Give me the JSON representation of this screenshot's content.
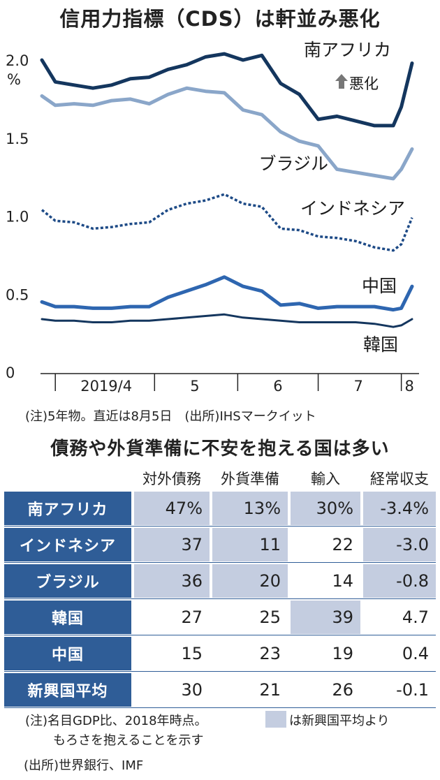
{
  "title": "信用力指標（CDS）は軒並み悪化",
  "chart_note": "(注)5年物。直近は8月5日　(出所)IHSマークイット",
  "worsening_label": "悪化",
  "chart_data": {
    "type": "line",
    "ylim": [
      0,
      2.0
    ],
    "y_ticks": [
      "0",
      "0.5",
      "1.0",
      "1.5",
      "2.0"
    ],
    "y_unit": "%",
    "x_ticks": [
      "2019/4",
      "5",
      "6",
      "7",
      "8"
    ],
    "x_range": [
      "2019-03-20",
      "2019-08-05"
    ],
    "grid": false,
    "series": [
      {
        "name": "南アフリカ",
        "color": "#14365e",
        "style": "solid",
        "x": [
          "2019-03-20",
          "2019-03-25",
          "2019-04-01",
          "2019-04-08",
          "2019-04-15",
          "2019-04-22",
          "2019-04-29",
          "2019-05-06",
          "2019-05-13",
          "2019-05-20",
          "2019-05-27",
          "2019-06-03",
          "2019-06-10",
          "2019-06-17",
          "2019-06-24",
          "2019-07-01",
          "2019-07-08",
          "2019-07-15",
          "2019-07-22",
          "2019-07-29",
          "2019-08-01",
          "2019-08-05"
        ],
        "values": [
          2.0,
          1.86,
          1.84,
          1.82,
          1.84,
          1.88,
          1.89,
          1.94,
          1.97,
          2.02,
          2.04,
          2.0,
          2.03,
          1.85,
          1.78,
          1.62,
          1.64,
          1.61,
          1.58,
          1.58,
          1.7,
          1.98
        ]
      },
      {
        "name": "ブラジル",
        "color": "#8aa6c9",
        "style": "solid",
        "x": [
          "2019-03-20",
          "2019-03-25",
          "2019-04-01",
          "2019-04-08",
          "2019-04-15",
          "2019-04-22",
          "2019-04-29",
          "2019-05-06",
          "2019-05-13",
          "2019-05-20",
          "2019-05-27",
          "2019-06-03",
          "2019-06-10",
          "2019-06-17",
          "2019-06-24",
          "2019-07-01",
          "2019-07-08",
          "2019-07-15",
          "2019-07-22",
          "2019-07-29",
          "2019-08-01",
          "2019-08-05"
        ],
        "values": [
          1.77,
          1.71,
          1.72,
          1.71,
          1.74,
          1.75,
          1.72,
          1.78,
          1.82,
          1.8,
          1.79,
          1.68,
          1.65,
          1.54,
          1.48,
          1.45,
          1.3,
          1.28,
          1.26,
          1.24,
          1.3,
          1.43
        ]
      },
      {
        "name": "インドネシア",
        "color": "#1d4a86",
        "style": "dotted",
        "x": [
          "2019-03-20",
          "2019-03-25",
          "2019-04-01",
          "2019-04-08",
          "2019-04-15",
          "2019-04-22",
          "2019-04-29",
          "2019-05-06",
          "2019-05-13",
          "2019-05-20",
          "2019-05-27",
          "2019-06-03",
          "2019-06-10",
          "2019-06-17",
          "2019-06-24",
          "2019-07-01",
          "2019-07-08",
          "2019-07-15",
          "2019-07-22",
          "2019-07-29",
          "2019-08-01",
          "2019-08-05"
        ],
        "values": [
          1.04,
          0.97,
          0.96,
          0.92,
          0.93,
          0.95,
          0.96,
          1.04,
          1.08,
          1.1,
          1.14,
          1.08,
          1.06,
          0.92,
          0.91,
          0.87,
          0.86,
          0.84,
          0.8,
          0.78,
          0.82,
          0.99
        ]
      },
      {
        "name": "中国",
        "color": "#2e66b0",
        "style": "solid",
        "x": [
          "2019-03-20",
          "2019-03-25",
          "2019-04-01",
          "2019-04-08",
          "2019-04-15",
          "2019-04-22",
          "2019-04-29",
          "2019-05-06",
          "2019-05-13",
          "2019-05-20",
          "2019-05-27",
          "2019-06-03",
          "2019-06-10",
          "2019-06-17",
          "2019-06-24",
          "2019-07-01",
          "2019-07-08",
          "2019-07-15",
          "2019-07-22",
          "2019-07-29",
          "2019-08-01",
          "2019-08-05"
        ],
        "values": [
          0.45,
          0.42,
          0.42,
          0.41,
          0.41,
          0.42,
          0.42,
          0.48,
          0.52,
          0.56,
          0.61,
          0.55,
          0.52,
          0.43,
          0.44,
          0.41,
          0.42,
          0.42,
          0.42,
          0.4,
          0.41,
          0.55
        ]
      },
      {
        "name": "韓国",
        "color": "#14365e",
        "style": "solid",
        "x": [
          "2019-03-20",
          "2019-03-25",
          "2019-04-01",
          "2019-04-08",
          "2019-04-15",
          "2019-04-22",
          "2019-04-29",
          "2019-05-06",
          "2019-05-13",
          "2019-05-20",
          "2019-05-27",
          "2019-06-03",
          "2019-06-10",
          "2019-06-17",
          "2019-06-24",
          "2019-07-01",
          "2019-07-08",
          "2019-07-15",
          "2019-07-22",
          "2019-07-29",
          "2019-08-01",
          "2019-08-05"
        ],
        "values": [
          0.34,
          0.33,
          0.33,
          0.32,
          0.32,
          0.33,
          0.33,
          0.34,
          0.35,
          0.36,
          0.37,
          0.35,
          0.34,
          0.33,
          0.32,
          0.32,
          0.32,
          0.32,
          0.31,
          0.29,
          0.3,
          0.34
        ]
      }
    ]
  },
  "table": {
    "title": "債務や外貨準備に不安を抱える国は多い",
    "columns": [
      "対外債務",
      "外貨準備",
      "輸入",
      "経常収支"
    ],
    "rows": [
      {
        "label": "南アフリカ",
        "values": [
          "47%",
          "13%",
          "30%",
          "-3.4%"
        ],
        "highlight": [
          true,
          true,
          true,
          true
        ]
      },
      {
        "label": "インドネシア",
        "values": [
          "37",
          "11",
          "22",
          "-3.0"
        ],
        "highlight": [
          true,
          true,
          false,
          true
        ]
      },
      {
        "label": "ブラジル",
        "values": [
          "36",
          "20",
          "14",
          "-0.8"
        ],
        "highlight": [
          true,
          true,
          false,
          true
        ]
      },
      {
        "label": "韓国",
        "values": [
          "27",
          "25",
          "39",
          "4.7"
        ],
        "highlight": [
          false,
          false,
          true,
          false
        ]
      },
      {
        "label": "中国",
        "values": [
          "15",
          "23",
          "19",
          "0.4"
        ],
        "highlight": [
          false,
          false,
          false,
          false
        ]
      },
      {
        "label": "新興国平均",
        "values": [
          "30",
          "21",
          "26",
          "-0.1"
        ],
        "highlight": [
          false,
          false,
          false,
          false
        ]
      }
    ],
    "highlight_color": "#c4cde0",
    "label_color": "#2f5d97",
    "note_part1": "(注)名目GDP比、2018年時点。",
    "note_part2": "は新興国平均より",
    "note_part3": "もろさを抱えることを示す",
    "source": "(出所)世界銀行、IMF"
  }
}
